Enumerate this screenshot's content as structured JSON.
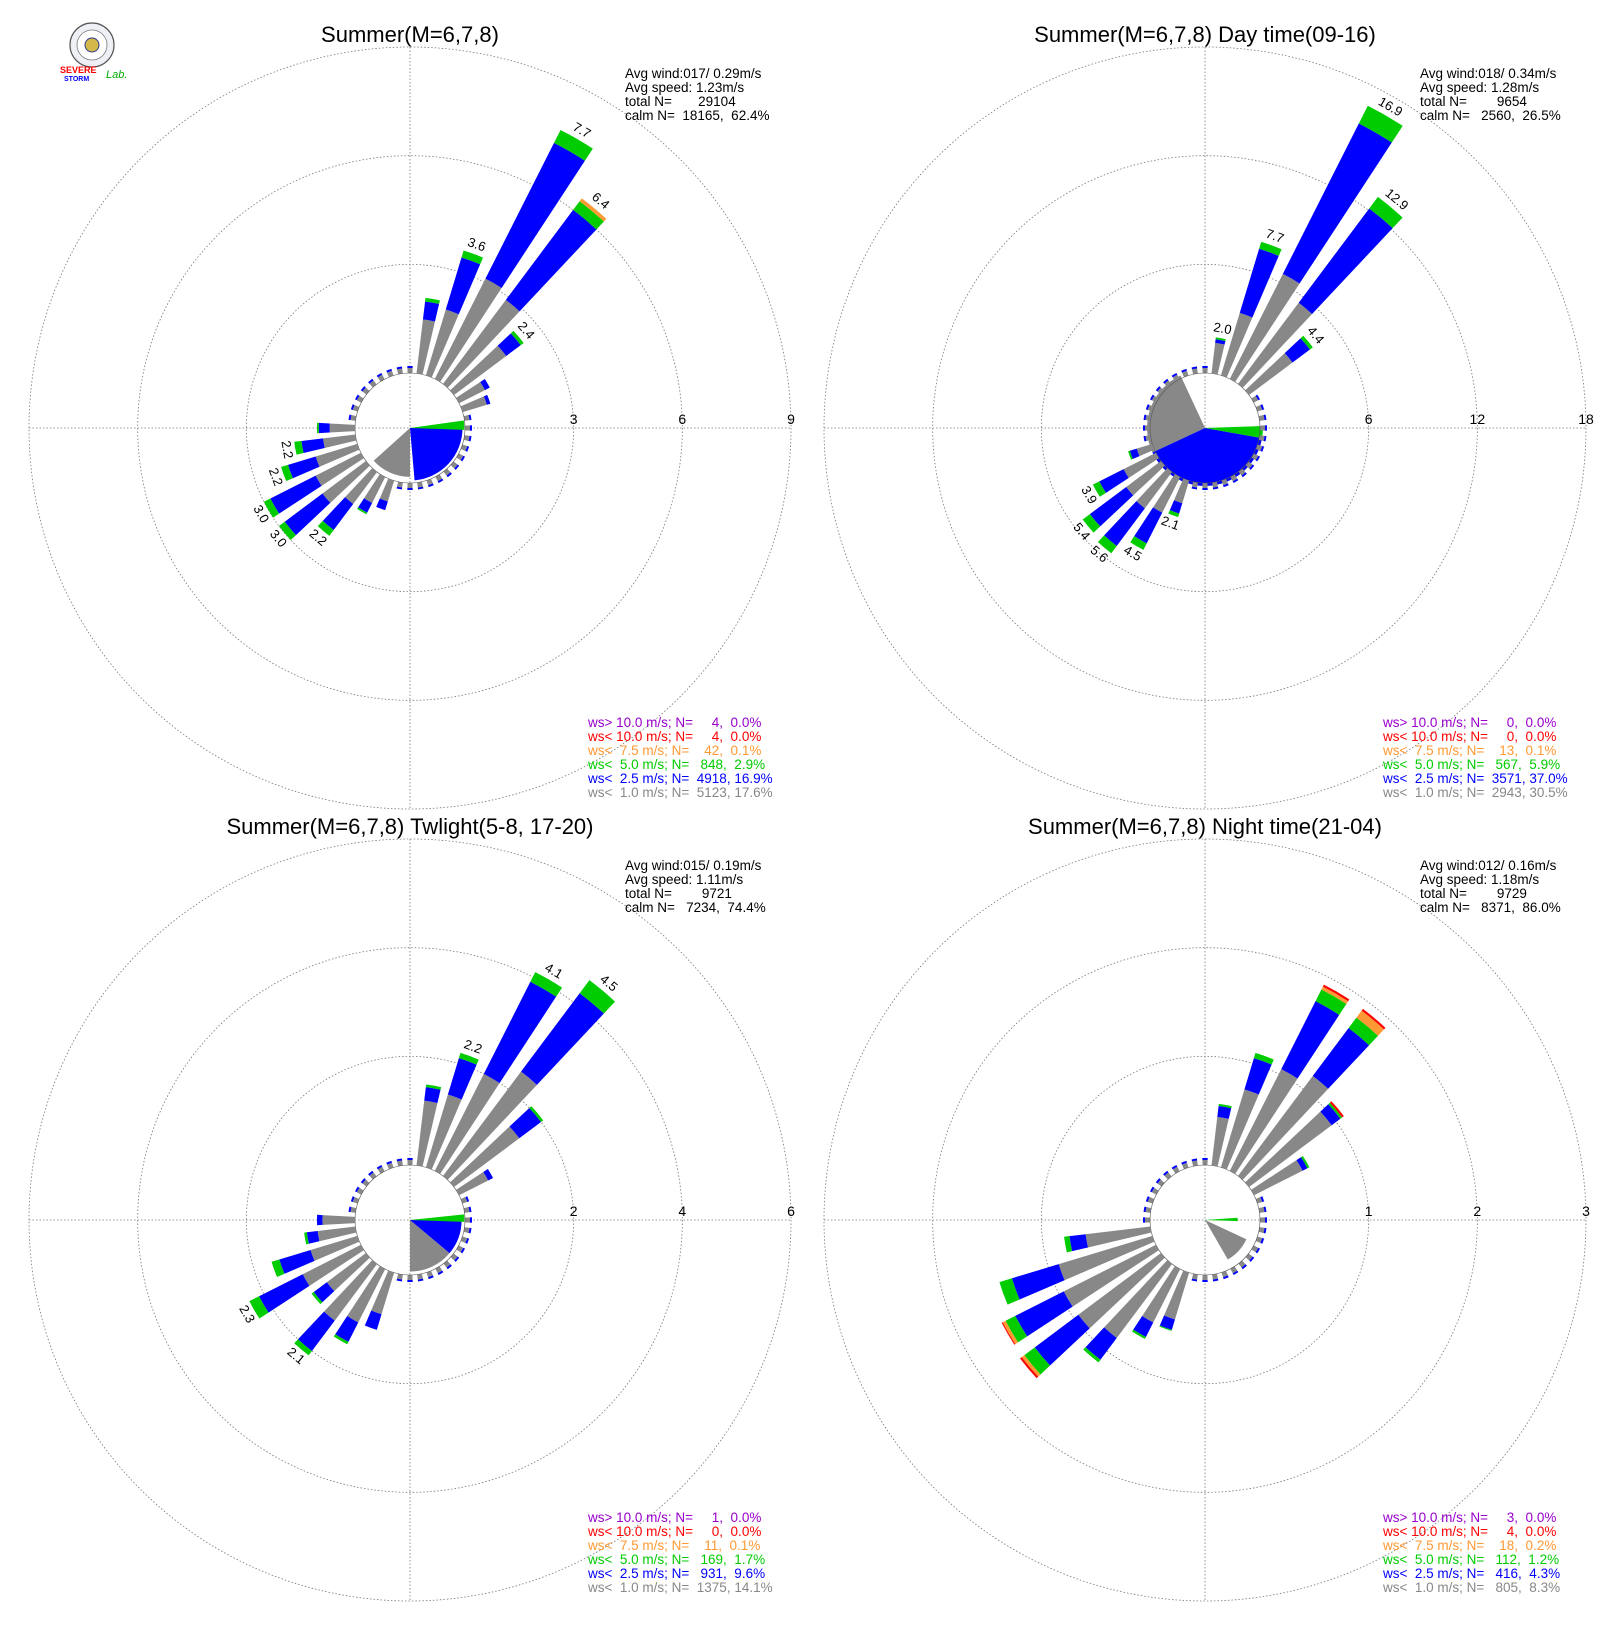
{
  "logo": {
    "text_lines": [
      "SEVERE",
      "STORM",
      "Lab."
    ]
  },
  "colors": {
    "c10plus": "#9900cc",
    "c10": "#ff0000",
    "c75": "#ff9933",
    "c50": "#00cc00",
    "c25": "#0000ff",
    "c10min": "#888888",
    "grid": "#777777"
  },
  "chart_data": [
    {
      "type": "windrose",
      "title": "Summer(M=6,7,8)",
      "ticks": [
        "3",
        "6",
        "9"
      ],
      "rmax": 9,
      "stats": [
        "Avg wind:017/ 0.29m/s",
        "Avg speed: 1.23m/s",
        "total N=       29104",
        "calm N=  18165,  62.4%"
      ],
      "legend": [
        {
          "label": "ws> 10.0 m/s; N=     4,  0.0%",
          "color": "c10plus"
        },
        {
          "label": "ws< 10.0 m/s; N=     4,  0.0%",
          "color": "c10"
        },
        {
          "label": "ws<  7.5 m/s; N=    42,  0.1%",
          "color": "c75"
        },
        {
          "label": "ws<  5.0 m/s; N=   848,  2.9%",
          "color": "c50"
        },
        {
          "label": "ws<  2.5 m/s; N=  4918, 16.9%",
          "color": "c25"
        },
        {
          "label": "ws<  1.0 m/s; N=  5123, 17.6%",
          "color": "c10min"
        }
      ],
      "sectors": [
        {
          "dir": 10,
          "gray": 1.5,
          "blue": 0.5,
          "green": 0.1,
          "orange": 0
        },
        {
          "dir": 20,
          "gray": 1.9,
          "blue": 1.5,
          "green": 0.2,
          "orange": 0,
          "label": "3.6"
        },
        {
          "dir": 30,
          "gray": 3.1,
          "blue": 4.2,
          "green": 0.4,
          "orange": 0,
          "label": "7.7"
        },
        {
          "dir": 40,
          "gray": 2.9,
          "blue": 3.1,
          "green": 0.3,
          "orange": 0.1,
          "label": "6.4"
        },
        {
          "dir": 50,
          "gray": 1.8,
          "blue": 0.5,
          "green": 0.1,
          "orange": 0,
          "label": "2.4"
        },
        {
          "dir": 60,
          "gray": 0.8,
          "blue": 0.15,
          "green": 0,
          "orange": 0
        },
        {
          "dir": 70,
          "gray": 0.7,
          "blue": 0.1,
          "green": 0,
          "orange": 0
        },
        {
          "dir": 200,
          "gray": 0.6,
          "blue": 0.25,
          "green": 0,
          "orange": 0
        },
        {
          "dir": 210,
          "gray": 0.8,
          "blue": 0.3,
          "green": 0.05,
          "orange": 0
        },
        {
          "dir": 220,
          "gray": 1.1,
          "blue": 0.9,
          "green": 0.2,
          "orange": 0,
          "label": "2.2"
        },
        {
          "dir": 230,
          "gray": 1.5,
          "blue": 1.3,
          "green": 0.2,
          "orange": 0,
          "label": "3.0"
        },
        {
          "dir": 240,
          "gray": 1.4,
          "blue": 1.4,
          "green": 0.2,
          "orange": 0,
          "label": "3.0"
        },
        {
          "dir": 250,
          "gray": 1.2,
          "blue": 0.8,
          "green": 0.2,
          "orange": 0,
          "label": "2.2"
        },
        {
          "dir": 260,
          "gray": 0.9,
          "blue": 0.6,
          "green": 0.2,
          "orange": 0,
          "label": "2.2"
        },
        {
          "dir": 270,
          "gray": 0.7,
          "blue": 0.3,
          "green": 0.05,
          "orange": 0
        }
      ],
      "center": {
        "blue_from": 90,
        "blue_to": 175,
        "blue_r": 1.45,
        "green_from": 82,
        "green_to": 92,
        "green_r": 1.5,
        "gray_from": 180,
        "gray_to": 228,
        "gray_r": 1.35
      }
    },
    {
      "type": "windrose",
      "title": "Summer(M=6,7,8) Day time(09-16)",
      "ticks": [
        "6",
        "12",
        "18"
      ],
      "rmax": 18,
      "stats": [
        "Avg wind:018/ 0.34m/s",
        "Avg speed: 1.28m/s",
        "total N=        9654",
        "calm N=   2560,  26.5%"
      ],
      "legend": [
        {
          "label": "ws> 10.0 m/s; N=     0,  0.0%",
          "color": "c10plus"
        },
        {
          "label": "ws< 10.0 m/s; N=     0,  0.0%",
          "color": "c10"
        },
        {
          "label": "ws<  7.5 m/s; N=    13,  0.1%",
          "color": "c75"
        },
        {
          "label": "ws<  5.0 m/s; N=   567,  5.9%",
          "color": "c50"
        },
        {
          "label": "ws<  2.5 m/s; N=  3571, 37.0%",
          "color": "c25"
        },
        {
          "label": "ws<  1.0 m/s; N=  2943, 30.5%",
          "color": "c10min"
        }
      ],
      "sectors": [
        {
          "dir": 10,
          "gray": 1.7,
          "blue": 0.2,
          "green": 0.1,
          "orange": 0,
          "label": "2.0"
        },
        {
          "dir": 20,
          "gray": 3.6,
          "blue": 3.7,
          "green": 0.4,
          "orange": 0,
          "label": "7.7"
        },
        {
          "dir": 30,
          "gray": 6.5,
          "blue": 9.3,
          "green": 1.1,
          "orange": 0,
          "label": "16.9"
        },
        {
          "dir": 40,
          "gray": 5.6,
          "blue": 6.5,
          "green": 0.8,
          "orange": 0,
          "label": "12.9"
        },
        {
          "dir": 50,
          "gray": 3.0,
          "blue": 1.2,
          "green": 0.2,
          "orange": 0,
          "label": "4.4"
        },
        {
          "dir": 200,
          "gray": 1.3,
          "blue": 0.6,
          "green": 0.2,
          "orange": 0,
          "label": "2.1"
        },
        {
          "dir": 210,
          "gray": 2.2,
          "blue": 1.9,
          "green": 0.4,
          "orange": 0,
          "label": "4.5"
        },
        {
          "dir": 220,
          "gray": 2.5,
          "blue": 2.6,
          "green": 0.5,
          "orange": 0,
          "label": "5.6"
        },
        {
          "dir": 230,
          "gray": 2.4,
          "blue": 2.5,
          "green": 0.5,
          "orange": 0,
          "label": "5.4"
        },
        {
          "dir": 240,
          "gray": 2.0,
          "blue": 1.5,
          "green": 0.4,
          "orange": 0,
          "label": "3.9"
        },
        {
          "dir": 250,
          "gray": 0.9,
          "blue": 0.4,
          "green": 0.1,
          "orange": 0
        }
      ],
      "center": {
        "blue_from": 100,
        "blue_to": 245,
        "blue_r": 3.2,
        "green_from": 88,
        "green_to": 100,
        "green_r": 3.2,
        "gray_from": 245,
        "gray_to": 335,
        "gray_r": 3.2
      }
    },
    {
      "type": "windrose",
      "title": "Summer(M=6,7,8) Twlight(5-8, 17-20)",
      "ticks": [
        "2",
        "4",
        "6"
      ],
      "rmax": 6,
      "stats": [
        "Avg wind:015/ 0.19m/s",
        "Avg speed: 1.11m/s",
        "total N=        9721",
        "calm N=   7234,  74.4%"
      ],
      "legend": [
        {
          "label": "ws> 10.0 m/s; N=     1,  0.0%",
          "color": "c10plus"
        },
        {
          "label": "ws< 10.0 m/s; N=     0,  0.0%",
          "color": "c10"
        },
        {
          "label": "ws<  7.5 m/s; N=    11,  0.1%",
          "color": "c75"
        },
        {
          "label": "ws<  5.0 m/s; N=   169,  1.7%",
          "color": "c50"
        },
        {
          "label": "ws<  2.5 m/s; N=   931,  9.6%",
          "color": "c25"
        },
        {
          "label": "ws<  1.0 m/s; N=  1375, 14.1%",
          "color": "c10min"
        }
      ],
      "sectors": [
        {
          "dir": 10,
          "gray": 1.2,
          "blue": 0.25,
          "green": 0.05,
          "orange": 0
        },
        {
          "dir": 20,
          "gray": 1.4,
          "blue": 0.7,
          "green": 0.1,
          "orange": 0,
          "label": "2.2"
        },
        {
          "dir": 30,
          "gray": 2.0,
          "blue": 1.9,
          "green": 0.2,
          "orange": 0,
          "label": "4.1"
        },
        {
          "dir": 40,
          "gray": 2.4,
          "blue": 1.8,
          "green": 0.3,
          "orange": 0,
          "label": "4.5"
        },
        {
          "dir": 50,
          "gray": 1.5,
          "blue": 0.5,
          "green": 0.05,
          "orange": 0
        },
        {
          "dir": 60,
          "gray": 0.6,
          "blue": 0.1,
          "green": 0,
          "orange": 0
        },
        {
          "dir": 200,
          "gray": 0.8,
          "blue": 0.3,
          "green": 0,
          "orange": 0
        },
        {
          "dir": 210,
          "gray": 1.1,
          "blue": 0.4,
          "green": 0.05,
          "orange": 0
        },
        {
          "dir": 220,
          "gray": 1.3,
          "blue": 0.7,
          "green": 0.1,
          "orange": 0,
          "label": "2.1"
        },
        {
          "dir": 230,
          "gray": 0.9,
          "blue": 0.3,
          "green": 0.05,
          "orange": 0
        },
        {
          "dir": 240,
          "gray": 1.2,
          "blue": 0.9,
          "green": 0.2,
          "orange": 0,
          "label": "2.3"
        },
        {
          "dir": 250,
          "gray": 0.9,
          "blue": 0.6,
          "green": 0.15,
          "orange": 0
        },
        {
          "dir": 260,
          "gray": 0.7,
          "blue": 0.2,
          "green": 0.05,
          "orange": 0
        },
        {
          "dir": 270,
          "gray": 0.6,
          "blue": 0.1,
          "green": 0,
          "orange": 0
        }
      ],
      "center": {
        "blue_from": 90,
        "blue_to": 130,
        "blue_r": 0.95,
        "green_from": 84,
        "green_to": 92,
        "green_r": 1.0,
        "gray_from": 130,
        "gray_to": 180,
        "gray_r": 0.95
      }
    },
    {
      "type": "windrose",
      "title": "Summer(M=6,7,8) Night time(21-04)",
      "ticks": [
        "1",
        "2",
        "3"
      ],
      "rmax": 3,
      "stats": [
        "Avg wind:012/ 0.16m/s",
        "Avg speed: 1.18m/s",
        "total N=        9729",
        "calm N=   8371,  86.0%"
      ],
      "legend": [
        {
          "label": "ws> 10.0 m/s; N=     3,  0.0%",
          "color": "c10plus"
        },
        {
          "label": "ws< 10.0 m/s; N=     4,  0.0%",
          "color": "c10"
        },
        {
          "label": "ws<  7.5 m/s; N=    18,  0.2%",
          "color": "c75"
        },
        {
          "label": "ws<  5.0 m/s; N=   112,  1.2%",
          "color": "c50"
        },
        {
          "label": "ws<  2.5 m/s; N=   416,  4.3%",
          "color": "c25"
        },
        {
          "label": "ws<  1.0 m/s; N=   805,  8.3%",
          "color": "c10min"
        }
      ],
      "sectors": [
        {
          "dir": 10,
          "gray": 0.45,
          "blue": 0.1,
          "green": 0.02,
          "orange": 0
        },
        {
          "dir": 20,
          "gray": 0.75,
          "blue": 0.3,
          "green": 0.05,
          "orange": 0
        },
        {
          "dir": 30,
          "gray": 1.05,
          "blue": 0.7,
          "green": 0.12,
          "orange": 0.03,
          "red": 0.02
        },
        {
          "dir": 40,
          "gray": 1.15,
          "blue": 0.55,
          "green": 0.12,
          "orange": 0.08,
          "red": 0.02
        },
        {
          "dir": 50,
          "gray": 0.95,
          "blue": 0.1,
          "green": 0.02,
          "orange": 0,
          "red": 0.02
        },
        {
          "dir": 60,
          "gray": 0.5,
          "blue": 0.05,
          "green": 0.02,
          "orange": 0
        },
        {
          "dir": 200,
          "gray": 0.45,
          "blue": 0.1,
          "green": 0.01,
          "orange": 0
        },
        {
          "dir": 210,
          "gray": 0.55,
          "blue": 0.15,
          "green": 0.02,
          "orange": 0
        },
        {
          "dir": 220,
          "gray": 0.85,
          "blue": 0.25,
          "green": 0.03,
          "orange": 0
        },
        {
          "dir": 230,
          "gray": 0.95,
          "blue": 0.5,
          "green": 0.12,
          "orange": 0.03,
          "red": 0.02
        },
        {
          "dir": 240,
          "gray": 0.95,
          "blue": 0.5,
          "green": 0.1,
          "orange": 0.03,
          "red": 0.01
        },
        {
          "dir": 250,
          "gray": 0.9,
          "blue": 0.45,
          "green": 0.12,
          "orange": 0
        },
        {
          "dir": 260,
          "gray": 0.6,
          "blue": 0.15,
          "green": 0.05,
          "orange": 0
        }
      ],
      "center": {
        "blue_from": 0,
        "blue_to": 0,
        "blue_r": 0,
        "green_from": 86,
        "green_to": 92,
        "green_r": 0.3,
        "gray_from": 115,
        "gray_to": 150,
        "gray_r": 0.42
      }
    }
  ]
}
